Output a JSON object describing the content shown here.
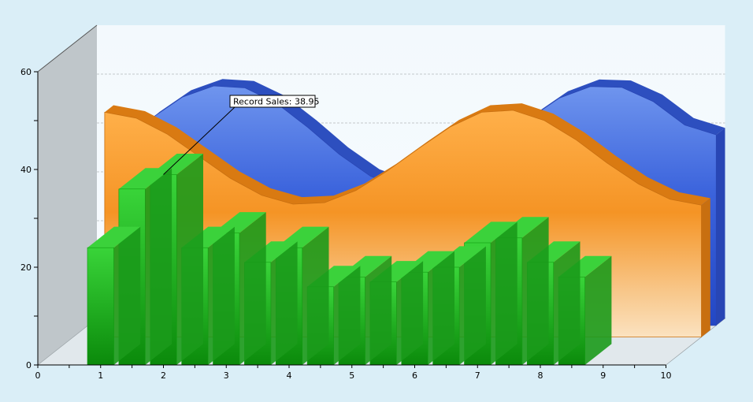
{
  "chart_data": {
    "type": "bar",
    "ylim": [
      0,
      60
    ],
    "xlim": [
      0,
      10
    ],
    "grid": true,
    "x_ticks": [
      "0",
      "1",
      "2",
      "3",
      "4",
      "5",
      "6",
      "7",
      "8",
      "9",
      "10"
    ],
    "y_ticks": [
      "0",
      "20",
      "40",
      "60"
    ],
    "annotation": {
      "text": "Record Sales: 38.95",
      "x": 2,
      "y": 38.95
    },
    "series": [
      {
        "type": "bar",
        "color": "#2ec22e",
        "x": [
          1,
          1.5,
          2,
          2.5,
          3,
          3.5,
          4,
          4.5,
          5,
          5.5,
          6,
          6.5,
          7,
          7.5,
          8,
          8.5
        ],
        "values": [
          24,
          36,
          38.95,
          24,
          27,
          21,
          24,
          16,
          18,
          17,
          19,
          20,
          25,
          26,
          21,
          18
        ]
      },
      {
        "type": "area",
        "color": "#ff9a1f",
        "x": [
          0.5,
          1,
          1.5,
          2,
          2.5,
          3,
          3.5,
          4,
          4.5,
          5,
          5.5,
          6,
          6.5,
          7,
          7.5,
          8,
          8.5,
          9,
          9.5,
          10
        ],
        "values": [
          46,
          44.8,
          41.5,
          37,
          32.5,
          29,
          27.2,
          27.5,
          30,
          34,
          38.6,
          43,
          46,
          46.4,
          44.3,
          40.4,
          35.6,
          31.3,
          28.2,
          27
        ]
      },
      {
        "type": "area",
        "color": "#3a64d8",
        "x": [
          0.5,
          1,
          1.5,
          2,
          2.5,
          3,
          3.5,
          4,
          4.5,
          5,
          5.5,
          6,
          6.5,
          7,
          7.5,
          8,
          8.5,
          9,
          9.5,
          10
        ],
        "values": [
          37,
          42.3,
          46.7,
          49,
          48.6,
          45.5,
          40.5,
          35,
          30.5,
          28.2,
          28.6,
          31.6,
          36.6,
          42.1,
          46.5,
          48.9,
          48.7,
          45.8,
          41,
          39
        ]
      }
    ]
  }
}
